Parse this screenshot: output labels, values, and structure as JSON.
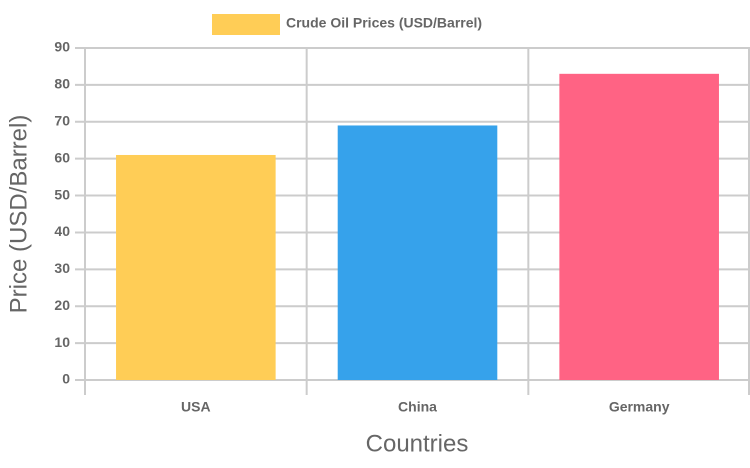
{
  "chart_data": {
    "type": "bar",
    "categories": [
      "USA",
      "China",
      "Germany"
    ],
    "series": [
      {
        "name": "Crude Oil Prices (USD/Barrel)",
        "colors": [
          "#ffcd56",
          "#36a2eb",
          "#ff6384"
        ],
        "values": [
          61,
          69,
          83
        ]
      }
    ],
    "x_label": "Countries",
    "y_label": "Price (USD/Barrel)",
    "ylim": [
      0,
      90
    ],
    "yticks": [
      0,
      10,
      20,
      30,
      40,
      50,
      60,
      70,
      80,
      90
    ],
    "grid": true,
    "legend": "top"
  }
}
